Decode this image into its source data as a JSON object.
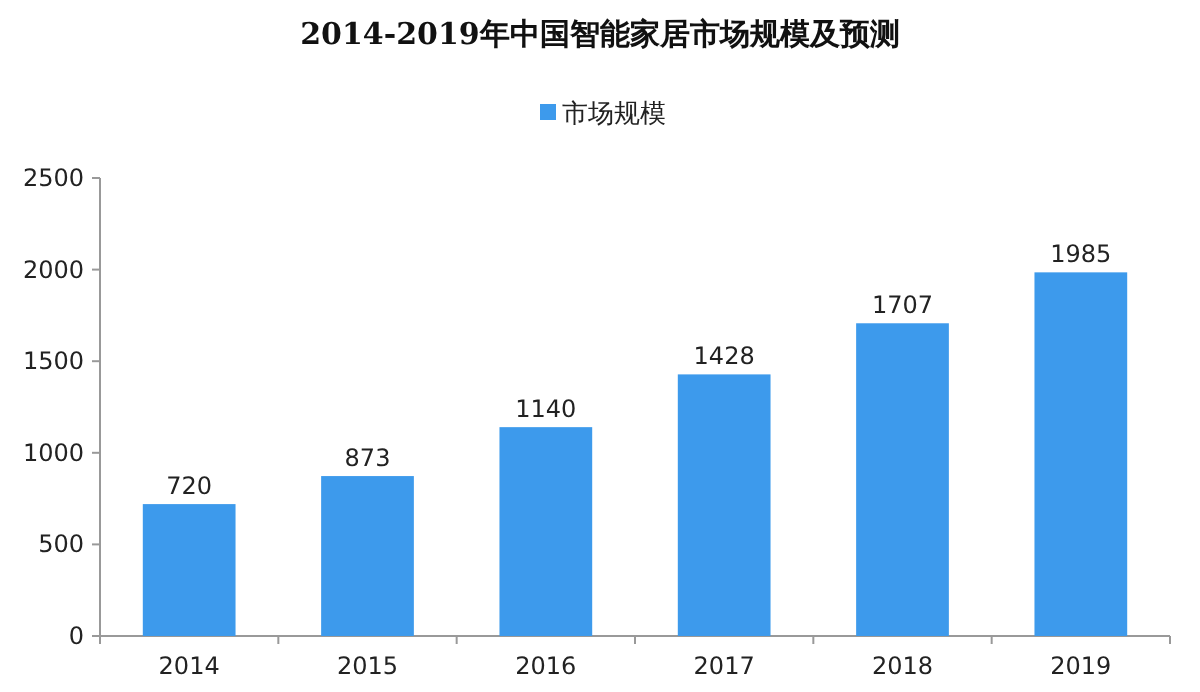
{
  "chart_data": {
    "type": "bar",
    "title": "2014-2019年中国智能家居市场规模及预测",
    "categories": [
      "2014",
      "2015",
      "2016",
      "2017",
      "2018",
      "2019"
    ],
    "series": [
      {
        "name": "市场规模",
        "color": "#3d9aec",
        "values": [
          720,
          873,
          1140,
          1428,
          1707,
          1985
        ]
      }
    ],
    "ylim": [
      0,
      2500
    ],
    "yticks": [
      0,
      500,
      1000,
      1500,
      2000,
      2500
    ],
    "data_labels": true,
    "legend": "top",
    "grid": false
  }
}
